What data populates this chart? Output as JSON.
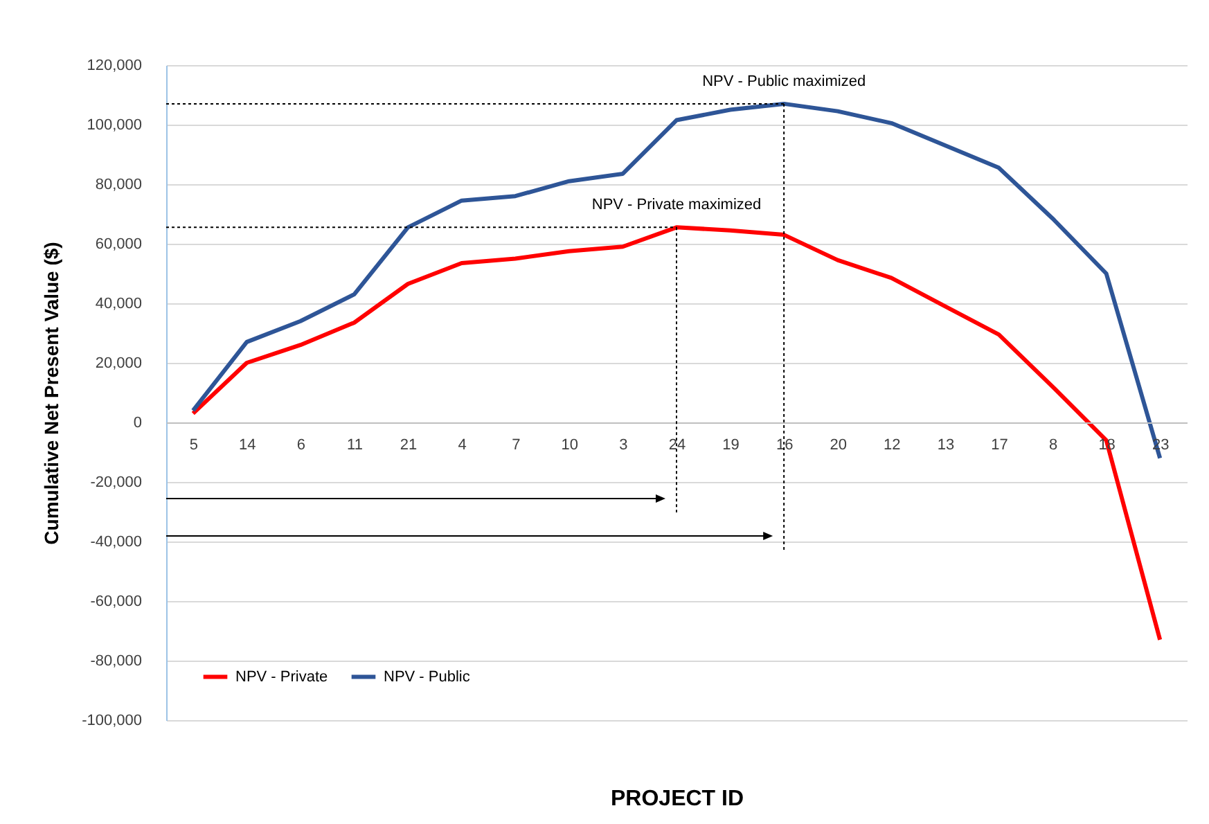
{
  "chart_data": {
    "type": "line",
    "xlabel": "PROJECT ID",
    "ylabel": "Cumulative Net Present Value ($)",
    "categories": [
      "5",
      "14",
      "6",
      "11",
      "21",
      "4",
      "7",
      "10",
      "3",
      "24",
      "19",
      "16",
      "20",
      "12",
      "13",
      "17",
      "8",
      "18",
      "23"
    ],
    "series": [
      {
        "name": "NPV - Private",
        "color": "#ff0000",
        "values": [
          3000,
          20000,
          26000,
          33500,
          46500,
          53500,
          55000,
          57500,
          59000,
          65500,
          64500,
          63000,
          54500,
          48500,
          39000,
          29500,
          12000,
          -6000,
          -73000
        ]
      },
      {
        "name": "NPV - Public",
        "color": "#2e5597",
        "values": [
          4000,
          27000,
          34000,
          43000,
          65500,
          74500,
          76000,
          81000,
          83500,
          101500,
          105000,
          107000,
          104500,
          100500,
          93000,
          85500,
          68500,
          50000,
          -12000
        ]
      }
    ],
    "ylim": [
      -100000,
      120000
    ],
    "yticks": [
      {
        "value": -100000,
        "label": "-100,000"
      },
      {
        "value": -80000,
        "label": "-80,000"
      },
      {
        "value": -60000,
        "label": "-60,000"
      },
      {
        "value": -40000,
        "label": "-40,000"
      },
      {
        "value": -20000,
        "label": "-20,000"
      },
      {
        "value": 0,
        "label": "0"
      },
      {
        "value": 20000,
        "label": "20,000"
      },
      {
        "value": 40000,
        "label": "40,000"
      },
      {
        "value": 60000,
        "label": "60,000"
      },
      {
        "value": 80000,
        "label": "80,000"
      },
      {
        "value": 100000,
        "label": "100,000"
      },
      {
        "value": 120000,
        "label": "120,000"
      }
    ],
    "grid": "y",
    "legend": "bottom left",
    "marker": "none",
    "line_style": "solid",
    "annotations": [
      {
        "text": "NPV - Private maximized",
        "x": "24",
        "y": 65500
      },
      {
        "text": "NPV - Public maximized",
        "x": "16",
        "y": 107000
      }
    ]
  }
}
